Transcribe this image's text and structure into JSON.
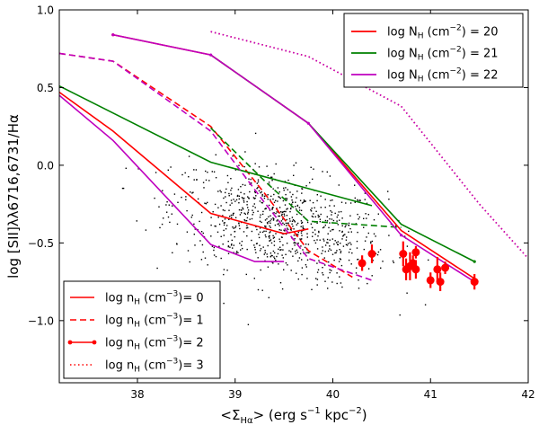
{
  "chart_data": {
    "type": "line",
    "title": "",
    "xlabel": "<Σ_Hα> (erg s⁻¹ kpc⁻²)",
    "xlabel_parts": {
      "open": "<Σ",
      "sub": "Hα",
      "close": "> (erg s",
      "exp": "−1",
      "tail": " kpc",
      "exp2": "−2",
      "end": ")"
    },
    "ylabel": "log [SII]λλ6716,6731/Hα",
    "xlim": [
      37.2,
      42.0
    ],
    "ylim": [
      -1.4,
      1.0
    ],
    "xticks": [
      38,
      39,
      40,
      41,
      42
    ],
    "yticks": [
      -1.0,
      -0.5,
      0.0,
      0.5,
      1.0
    ],
    "xtick_labels": [
      "38",
      "39",
      "40",
      "41",
      "42"
    ],
    "ytick_labels": [
      "−1.0",
      "−0.5",
      "0.0",
      "0.5",
      "1.0"
    ],
    "colors": {
      "red": "#ff0000",
      "green": "#008000",
      "magenta": "#bf00bf",
      "black": "#000000",
      "frame": "#000000"
    },
    "series": [
      {
        "name": "red n0",
        "color": "red",
        "style": "solid",
        "x": [
          37.2,
          37.75,
          38.75,
          39.5,
          39.75
        ],
        "y": [
          0.47,
          0.22,
          -0.31,
          -0.44,
          -0.41
        ]
      },
      {
        "name": "red n1",
        "color": "red",
        "style": "dashed",
        "x": [
          37.2,
          37.75,
          38.75,
          39.3,
          39.75,
          40.2
        ],
        "y": [
          0.72,
          0.67,
          0.25,
          -0.18,
          -0.55,
          -0.72
        ]
      },
      {
        "name": "red n2",
        "color": "red",
        "style": "solid",
        "x": [
          37.75,
          38.75,
          39.75,
          40.7,
          41.45
        ],
        "y": [
          0.84,
          0.71,
          0.27,
          -0.42,
          -0.73
        ]
      },
      {
        "name": "red n3",
        "color": "red",
        "style": "dotted",
        "x": [
          38.75,
          39.75,
          40.7,
          41.5,
          42.0
        ],
        "y": [
          0.86,
          0.7,
          0.38,
          -0.25,
          -0.6
        ]
      },
      {
        "name": "green n0",
        "color": "green",
        "style": "solid",
        "x": [
          37.2,
          38.75,
          39.75,
          40.4
        ],
        "y": [
          0.51,
          0.02,
          -0.15,
          -0.26
        ]
      },
      {
        "name": "green n1",
        "color": "green",
        "style": "dashed",
        "x": [
          38.75,
          39.3,
          39.75,
          40.7
        ],
        "y": [
          0.24,
          -0.1,
          -0.36,
          -0.4
        ]
      },
      {
        "name": "green n2",
        "color": "green",
        "style": "solid",
        "x": [
          38.75,
          39.75,
          40.7,
          41.45
        ],
        "y": [
          0.71,
          0.27,
          -0.38,
          -0.62
        ]
      },
      {
        "name": "magenta n0",
        "color": "magenta",
        "style": "solid",
        "x": [
          37.2,
          37.75,
          38.75,
          39.2,
          39.5
        ],
        "y": [
          0.45,
          0.16,
          -0.51,
          -0.62,
          -0.62
        ]
      },
      {
        "name": "magenta n1",
        "color": "magenta",
        "style": "dashed",
        "x": [
          37.2,
          37.75,
          38.75,
          39.3,
          39.75,
          40.4
        ],
        "y": [
          0.72,
          0.67,
          0.22,
          -0.24,
          -0.6,
          -0.74
        ]
      },
      {
        "name": "magenta n2",
        "color": "magenta",
        "style": "solid",
        "x": [
          37.75,
          38.75,
          39.75,
          40.7,
          41.45
        ],
        "y": [
          0.84,
          0.71,
          0.27,
          -0.45,
          -0.75
        ]
      },
      {
        "name": "magenta n3",
        "color": "magenta",
        "style": "dotted",
        "x": [
          38.75,
          39.75,
          40.7,
          41.5,
          42.0
        ],
        "y": [
          0.86,
          0.7,
          0.38,
          -0.25,
          -0.6
        ]
      }
    ],
    "markers": [
      {
        "color": "red",
        "x": 37.75,
        "y": 0.84,
        "size": 1.6
      },
      {
        "color": "magenta",
        "x": 37.75,
        "y": 0.84,
        "size": 1.6
      },
      {
        "color": "magenta",
        "x": 38.75,
        "y": 0.71,
        "size": 1.6
      },
      {
        "color": "magenta",
        "x": 39.75,
        "y": 0.27,
        "size": 1.6
      },
      {
        "color": "magenta",
        "x": 40.7,
        "y": -0.45,
        "size": 1.6
      },
      {
        "color": "magenta",
        "x": 41.45,
        "y": -0.75,
        "size": 1.6
      },
      {
        "color": "green",
        "x": 41.45,
        "y": -0.62,
        "size": 1.6
      }
    ],
    "observations": {
      "color": "red",
      "x": [
        40.3,
        40.4,
        40.72,
        40.75,
        40.79,
        40.82,
        40.85,
        40.85,
        41.0,
        41.07,
        41.1,
        41.15,
        41.45
      ],
      "y": [
        -0.63,
        -0.57,
        -0.57,
        -0.67,
        -0.65,
        -0.63,
        -0.67,
        -0.56,
        -0.74,
        -0.67,
        -0.75,
        -0.66,
        -0.75
      ],
      "yerr": [
        0.05,
        0.06,
        0.08,
        0.07,
        0.09,
        0.05,
        0.06,
        0.04,
        0.05,
        0.08,
        0.06,
        0.04,
        0.05
      ]
    },
    "scatter_points": {
      "color": "black",
      "count": 850,
      "x_range": [
        37.6,
        41.0
      ],
      "y_range": [
        -1.25,
        0.3
      ],
      "note": "dense cloud of galaxy measurements centered near x=39.5, y=-0.35"
    },
    "legend_upper": {
      "location": "top-right",
      "entries": [
        {
          "color": "red",
          "label": {
            "pre": "log N",
            "sub": "H",
            "mid": " (cm",
            "exp": "−2",
            "post": ") = 20"
          }
        },
        {
          "color": "green",
          "label": {
            "pre": "log N",
            "sub": "H",
            "mid": " (cm",
            "exp": "−2",
            "post": ") = 21"
          }
        },
        {
          "color": "magenta",
          "label": {
            "pre": "log N",
            "sub": "H",
            "mid": " (cm",
            "exp": "−2",
            "post": ") = 22"
          }
        }
      ]
    },
    "legend_lower": {
      "location": "bottom-left",
      "entries": [
        {
          "color": "red",
          "style": "solid",
          "label": {
            "pre": "log n",
            "sub": "H",
            "mid": " (cm",
            "exp": "−3",
            "post": ")= 0"
          }
        },
        {
          "color": "red",
          "style": "dashed",
          "label": {
            "pre": "log n",
            "sub": "H",
            "mid": " (cm",
            "exp": "−3",
            "post": ")= 1"
          }
        },
        {
          "color": "red",
          "style": "marker",
          "label": {
            "pre": "log n",
            "sub": "H",
            "mid": " (cm",
            "exp": "−3",
            "post": ")= 2"
          }
        },
        {
          "color": "red",
          "style": "dotted",
          "label": {
            "pre": "log n",
            "sub": "H",
            "mid": " (cm",
            "exp": "−3",
            "post": ")= 3"
          }
        }
      ]
    }
  }
}
